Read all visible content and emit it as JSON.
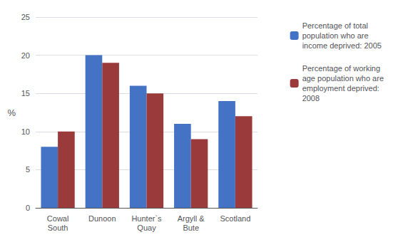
{
  "chart_data": {
    "type": "bar",
    "categories": [
      "Cowal\nSouth",
      "Dunoon",
      "Hunter`s\nQuay",
      "Argyll &\nBute",
      "Scotland"
    ],
    "series": [
      {
        "name": "Percentage of total\npopulation who are\nincome deprived: 2005",
        "color": "#4472C4",
        "values": [
          8,
          20,
          16,
          11,
          14
        ]
      },
      {
        "name": "Percentage of working\nage population who are\nemployment deprived:\n2008",
        "color": "#9B3A3A",
        "values": [
          10,
          19,
          15,
          9,
          12
        ]
      }
    ],
    "ylabel": "%",
    "ylim": [
      0,
      25
    ],
    "yticks": [
      0,
      5,
      10,
      15,
      20,
      25
    ],
    "grid": true,
    "legend": "upper right"
  }
}
